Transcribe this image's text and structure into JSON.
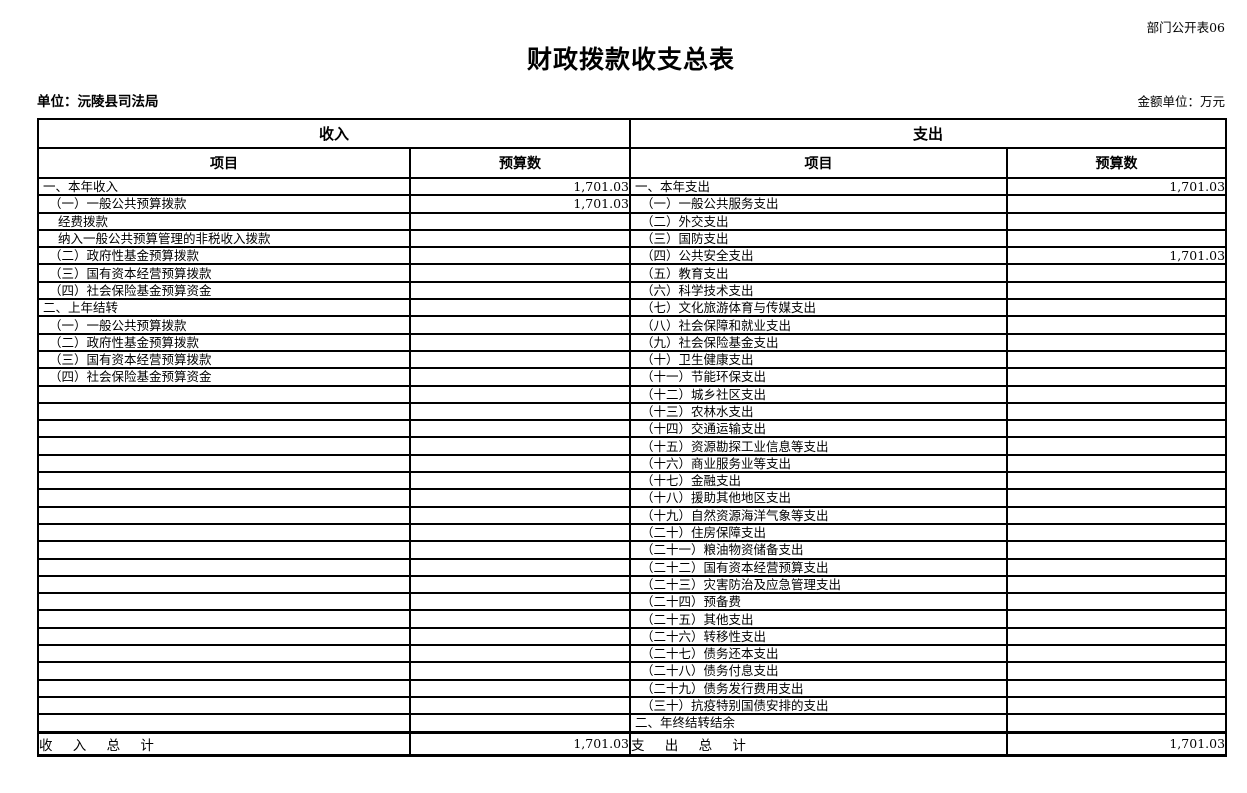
{
  "page": {
    "corner_label": "部门公开表06",
    "title": "财政拨款收支总表",
    "unit_label": "单位：沅陵县司法局",
    "amount_unit_label": "金额单位：万元"
  },
  "table": {
    "income_header": "收入",
    "expense_header": "支出",
    "item_header": "项目",
    "budget_header": "预算数",
    "income_rows": [
      {
        "item": "一、本年收入",
        "value": "1,701.03",
        "indent": 0
      },
      {
        "item": "（一）一般公共预算拨款",
        "value": "1,701.03",
        "indent": 1
      },
      {
        "item": "经费拨款",
        "value": "",
        "indent": 2
      },
      {
        "item": "纳入一般公共预算管理的非税收入拨款",
        "value": "",
        "indent": 2
      },
      {
        "item": "（二）政府性基金预算拨款",
        "value": "",
        "indent": 1
      },
      {
        "item": "（三）国有资本经营预算拨款",
        "value": "",
        "indent": 1
      },
      {
        "item": "（四）社会保险基金预算资金",
        "value": "",
        "indent": 1
      },
      {
        "item": "二、上年结转",
        "value": "",
        "indent": 0
      },
      {
        "item": "（一）一般公共预算拨款",
        "value": "",
        "indent": 1
      },
      {
        "item": "（二）政府性基金预算拨款",
        "value": "",
        "indent": 1
      },
      {
        "item": "（三）国有资本经营预算拨款",
        "value": "",
        "indent": 1
      },
      {
        "item": "（四）社会保险基金预算资金",
        "value": "",
        "indent": 1
      },
      {
        "item": "",
        "value": "",
        "indent": 0
      },
      {
        "item": "",
        "value": "",
        "indent": 0
      },
      {
        "item": "",
        "value": "",
        "indent": 0
      },
      {
        "item": "",
        "value": "",
        "indent": 0
      },
      {
        "item": "",
        "value": "",
        "indent": 0
      },
      {
        "item": "",
        "value": "",
        "indent": 0
      },
      {
        "item": "",
        "value": "",
        "indent": 0
      },
      {
        "item": "",
        "value": "",
        "indent": 0
      },
      {
        "item": "",
        "value": "",
        "indent": 0
      },
      {
        "item": "",
        "value": "",
        "indent": 0
      },
      {
        "item": "",
        "value": "",
        "indent": 0
      },
      {
        "item": "",
        "value": "",
        "indent": 0
      },
      {
        "item": "",
        "value": "",
        "indent": 0
      },
      {
        "item": "",
        "value": "",
        "indent": 0
      },
      {
        "item": "",
        "value": "",
        "indent": 0
      },
      {
        "item": "",
        "value": "",
        "indent": 0
      },
      {
        "item": "",
        "value": "",
        "indent": 0
      },
      {
        "item": "",
        "value": "",
        "indent": 0
      },
      {
        "item": "",
        "value": "",
        "indent": 0
      },
      {
        "item": "",
        "value": "",
        "indent": 0
      }
    ],
    "expense_rows": [
      {
        "item": "一、本年支出",
        "value": "1,701.03",
        "indent": 0
      },
      {
        "item": "（一）一般公共服务支出",
        "value": "",
        "indent": 1
      },
      {
        "item": "（二）外交支出",
        "value": "",
        "indent": 1
      },
      {
        "item": "（三）国防支出",
        "value": "",
        "indent": 1
      },
      {
        "item": "（四）公共安全支出",
        "value": "1,701.03",
        "indent": 1
      },
      {
        "item": "（五）教育支出",
        "value": "",
        "indent": 1
      },
      {
        "item": "（六）科学技术支出",
        "value": "",
        "indent": 1
      },
      {
        "item": "（七）文化旅游体育与传媒支出",
        "value": "",
        "indent": 1
      },
      {
        "item": "（八）社会保障和就业支出",
        "value": "",
        "indent": 1
      },
      {
        "item": "（九）社会保险基金支出",
        "value": "",
        "indent": 1
      },
      {
        "item": "（十）卫生健康支出",
        "value": "",
        "indent": 1
      },
      {
        "item": "（十一）节能环保支出",
        "value": "",
        "indent": 1
      },
      {
        "item": "（十二）城乡社区支出",
        "value": "",
        "indent": 1
      },
      {
        "item": "（十三）农林水支出",
        "value": "",
        "indent": 1
      },
      {
        "item": "（十四）交通运输支出",
        "value": "",
        "indent": 1
      },
      {
        "item": "（十五）资源勘探工业信息等支出",
        "value": "",
        "indent": 1
      },
      {
        "item": "（十六）商业服务业等支出",
        "value": "",
        "indent": 1
      },
      {
        "item": "（十七）金融支出",
        "value": "",
        "indent": 1
      },
      {
        "item": "（十八）援助其他地区支出",
        "value": "",
        "indent": 1
      },
      {
        "item": "（十九）自然资源海洋气象等支出",
        "value": "",
        "indent": 1
      },
      {
        "item": "（二十）住房保障支出",
        "value": "",
        "indent": 1
      },
      {
        "item": "（二十一）粮油物资储备支出",
        "value": "",
        "indent": 1
      },
      {
        "item": "（二十二）国有资本经营预算支出",
        "value": "",
        "indent": 1
      },
      {
        "item": "（二十三）灾害防治及应急管理支出",
        "value": "",
        "indent": 1
      },
      {
        "item": "（二十四）预备费",
        "value": "",
        "indent": 1
      },
      {
        "item": "（二十五）其他支出",
        "value": "",
        "indent": 1
      },
      {
        "item": "（二十六）转移性支出",
        "value": "",
        "indent": 1
      },
      {
        "item": "（二十七）债务还本支出",
        "value": "",
        "indent": 1
      },
      {
        "item": "（二十八）债务付息支出",
        "value": "",
        "indent": 1
      },
      {
        "item": "（二十九）债务发行费用支出",
        "value": "",
        "indent": 1
      },
      {
        "item": "（三十）抗疫特别国债安排的支出",
        "value": "",
        "indent": 1
      },
      {
        "item": "二、年终结转结余",
        "value": "",
        "indent": 0
      }
    ],
    "total_row": {
      "income_label": "收 入 总 计",
      "income_value": "1,701.03",
      "expense_label": "支 出 总 计",
      "expense_value": "1,701.03"
    }
  }
}
